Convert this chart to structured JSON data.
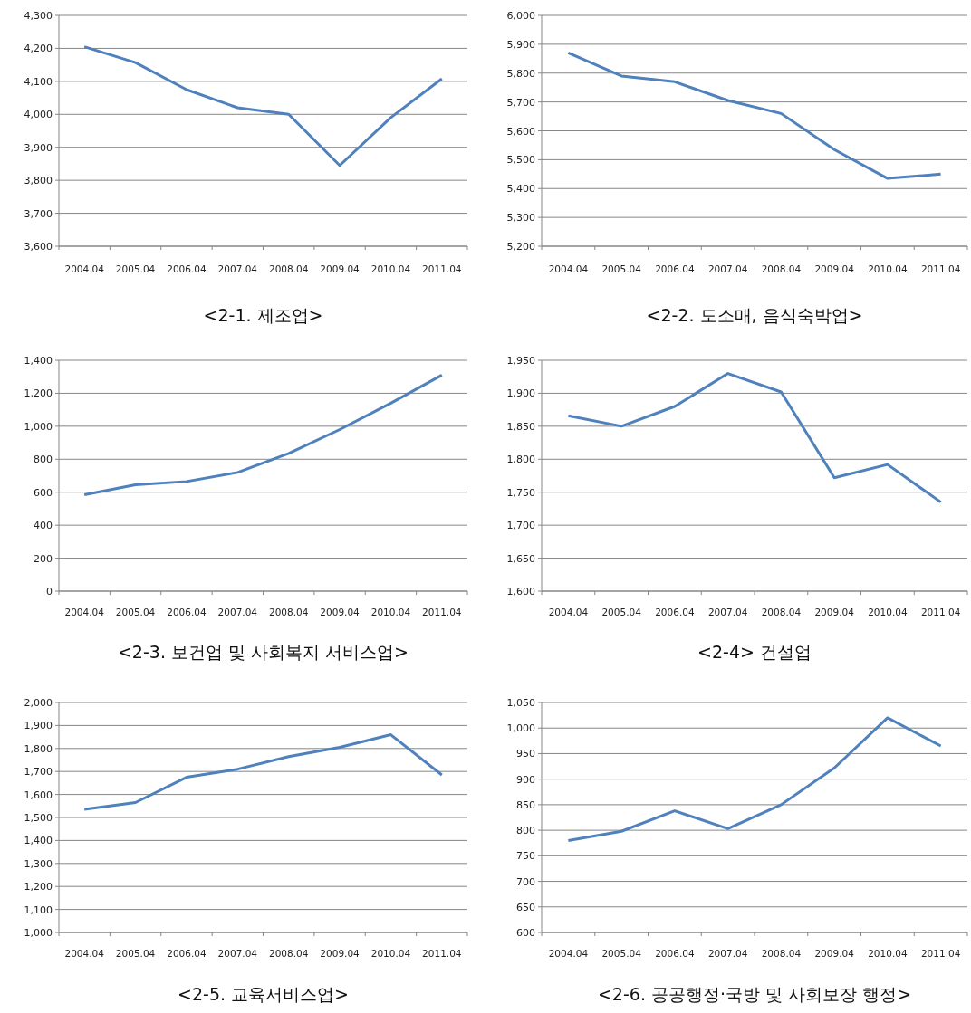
{
  "chart_data": [
    {
      "type": "line",
      "title": "<2-1. 제조업>",
      "categories": [
        "2004.04",
        "2005.04",
        "2006.04",
        "2007.04",
        "2008.04",
        "2009.04",
        "2010.04",
        "2011.04"
      ],
      "series": [
        {
          "color": "#4f81bd",
          "values": [
            4205,
            4157,
            4075,
            4020,
            4000,
            3845,
            3990,
            4108
          ]
        }
      ],
      "ylim": [
        3600,
        4300
      ],
      "yticks": [
        {
          "value": 3600,
          "label": "3,600"
        },
        {
          "value": 3700,
          "label": "3,700"
        },
        {
          "value": 3800,
          "label": "3,800"
        },
        {
          "value": 3900,
          "label": "3,900"
        },
        {
          "value": 4000,
          "label": "4,000"
        },
        {
          "value": 4100,
          "label": "4,100"
        },
        {
          "value": 4200,
          "label": "4,200"
        },
        {
          "value": 4300,
          "label": "4,300"
        }
      ],
      "grid": "y",
      "marker": "none",
      "line_style": "solid"
    },
    {
      "type": "line",
      "title": "<2-2. 도소매, 음식숙박업>",
      "categories": [
        "2004.04",
        "2005.04",
        "2006.04",
        "2007.04",
        "2008.04",
        "2009.04",
        "2010.04",
        "2011.04"
      ],
      "series": [
        {
          "color": "#4f81bd",
          "values": [
            5870,
            5790,
            5770,
            5705,
            5660,
            5535,
            5435,
            5450
          ]
        }
      ],
      "ylim": [
        5200,
        6000
      ],
      "yticks": [
        {
          "value": 5200,
          "label": "5,200"
        },
        {
          "value": 5300,
          "label": "5,300"
        },
        {
          "value": 5400,
          "label": "5,400"
        },
        {
          "value": 5500,
          "label": "5,500"
        },
        {
          "value": 5600,
          "label": "5,600"
        },
        {
          "value": 5700,
          "label": "5,700"
        },
        {
          "value": 5800,
          "label": "5,800"
        },
        {
          "value": 5900,
          "label": "5,900"
        },
        {
          "value": 6000,
          "label": "6,000"
        }
      ],
      "grid": "y",
      "marker": "none",
      "line_style": "solid"
    },
    {
      "type": "line",
      "title": "<2-3. 보건업 및 사회복지 서비스업>",
      "categories": [
        "2004.04",
        "2005.04",
        "2006.04",
        "2007.04",
        "2008.04",
        "2009.04",
        "2010.04",
        "2011.04"
      ],
      "series": [
        {
          "color": "#4f81bd",
          "values": [
            585,
            645,
            665,
            720,
            835,
            980,
            1140,
            1310
          ]
        }
      ],
      "ylim": [
        0,
        1400
      ],
      "yticks": [
        0,
        200,
        400,
        600,
        800,
        {
          "value": 1000,
          "label": "1,000"
        },
        {
          "value": 1200,
          "label": "1,200"
        },
        {
          "value": 1400,
          "label": "1,400"
        }
      ],
      "grid": "y",
      "marker": "none",
      "line_style": "solid"
    },
    {
      "type": "line",
      "title": "<2-4> 건설업",
      "categories": [
        "2004.04",
        "2005.04",
        "2006.04",
        "2007.04",
        "2008.04",
        "2009.04",
        "2010.04",
        "2011.04"
      ],
      "series": [
        {
          "color": "#4f81bd",
          "values": [
            1866,
            1850,
            1880,
            1930,
            1902,
            1772,
            1792,
            1735
          ]
        }
      ],
      "ylim": [
        1600,
        1950
      ],
      "yticks": [
        {
          "value": 1600,
          "label": "1,600"
        },
        {
          "value": 1650,
          "label": "1,650"
        },
        {
          "value": 1700,
          "label": "1,700"
        },
        {
          "value": 1750,
          "label": "1,750"
        },
        {
          "value": 1800,
          "label": "1,800"
        },
        {
          "value": 1850,
          "label": "1,850"
        },
        {
          "value": 1900,
          "label": "1,900"
        },
        {
          "value": 1950,
          "label": "1,950"
        }
      ],
      "grid": "y",
      "marker": "none",
      "line_style": "solid"
    },
    {
      "type": "line",
      "title": "<2-5. 교육서비스업>",
      "categories": [
        "2004.04",
        "2005.04",
        "2006.04",
        "2007.04",
        "2008.04",
        "2009.04",
        "2010.04",
        "2011.04"
      ],
      "series": [
        {
          "color": "#4f81bd",
          "values": [
            1535,
            1565,
            1675,
            1710,
            1765,
            1805,
            1860,
            1685
          ]
        }
      ],
      "ylim": [
        1000,
        2000
      ],
      "yticks": [
        {
          "value": 1000,
          "label": "1,000"
        },
        {
          "value": 1100,
          "label": "1,100"
        },
        {
          "value": 1200,
          "label": "1,200"
        },
        {
          "value": 1300,
          "label": "1,300"
        },
        {
          "value": 1400,
          "label": "1,400"
        },
        {
          "value": 1500,
          "label": "1,500"
        },
        {
          "value": 1600,
          "label": "1,600"
        },
        {
          "value": 1700,
          "label": "1,700"
        },
        {
          "value": 1800,
          "label": "1,800"
        },
        {
          "value": 1900,
          "label": "1,900"
        },
        {
          "value": 2000,
          "label": "2,000"
        }
      ],
      "grid": "y",
      "marker": "none",
      "line_style": "solid"
    },
    {
      "type": "line",
      "title": "<2-6. 공공행정·국방 및 사회보장 행정>",
      "categories": [
        "2004.04",
        "2005.04",
        "2006.04",
        "2007.04",
        "2008.04",
        "2009.04",
        "2010.04",
        "2011.04"
      ],
      "series": [
        {
          "color": "#4f81bd",
          "values": [
            780,
            798,
            838,
            803,
            850,
            922,
            1020,
            965
          ]
        }
      ],
      "ylim": [
        600,
        1050
      ],
      "yticks": [
        600,
        650,
        700,
        750,
        800,
        850,
        900,
        950,
        {
          "value": 1000,
          "label": "1,000"
        },
        {
          "value": 1050,
          "label": "1,050"
        }
      ],
      "grid": "y",
      "marker": "none",
      "line_style": "solid"
    }
  ]
}
